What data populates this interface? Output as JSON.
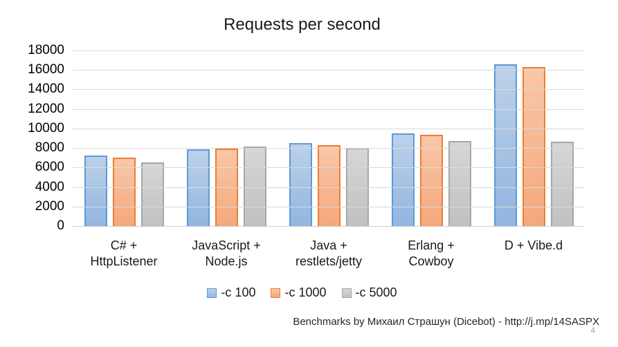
{
  "chart_data": {
    "type": "bar",
    "title": "Requests per second",
    "categories": [
      "C# + HttpListener",
      "JavaScript + Node.js",
      "Java + restlets/jetty",
      "Erlang + Cowboy",
      "D + Vibe.d"
    ],
    "category_label_lines": [
      [
        "C# +",
        "HttpListener"
      ],
      [
        "JavaScript +",
        "Node.js"
      ],
      [
        "Java +",
        "restlets/jetty"
      ],
      [
        "Erlang +",
        "Cowboy"
      ],
      [
        "D + Vibe.d"
      ]
    ],
    "series": [
      {
        "name": "-c 100",
        "values": [
          7200,
          7850,
          8500,
          9500,
          16550
        ],
        "fill_top": "#BCD1EA",
        "fill_bottom": "#92B5DF",
        "border": "#5B9BD5"
      },
      {
        "name": "-c 1000",
        "values": [
          7000,
          7950,
          8300,
          9350,
          16300
        ],
        "fill_top": "#F9C7A8",
        "fill_bottom": "#F4A87C",
        "border": "#ED7D31"
      },
      {
        "name": "-c 5000",
        "values": [
          6550,
          8150,
          8000,
          8750,
          8650
        ],
        "fill_top": "#D6D6D6",
        "fill_bottom": "#C1C1C1",
        "border": "#A6A6A6"
      }
    ],
    "xlabel": "",
    "ylabel": "",
    "ylim": [
      0,
      18000
    ],
    "yticks": [
      0,
      2000,
      4000,
      6000,
      8000,
      10000,
      12000,
      14000,
      16000,
      18000
    ],
    "grid": true,
    "legend_position": "bottom"
  },
  "footer": {
    "credit": "Benchmarks by Михаил Страшун (Dicebot) - http://j.mp/14SASPX",
    "page_number": "4"
  },
  "colors": {
    "gridline": "#D9D9D9",
    "axis_baseline": "#CDCDCD",
    "axis_text": "#000000",
    "page_number_text": "#A6A6A6"
  }
}
